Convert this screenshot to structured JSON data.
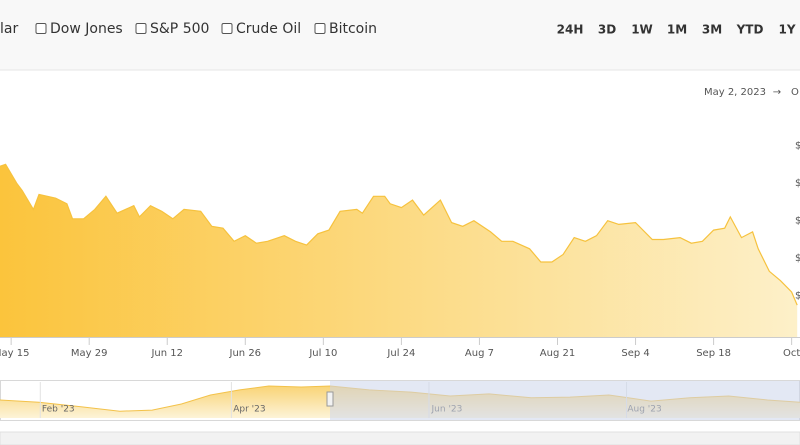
{
  "toolbar": {
    "compare": [
      "lar",
      "Dow Jones",
      "S&P 500",
      "Crude Oil",
      "Bitcoin"
    ],
    "ranges": [
      "24H",
      "3D",
      "1W",
      "1M",
      "3M",
      "YTD",
      "1Y"
    ],
    "active_range": "YTD"
  },
  "date_range": {
    "from": "May 2, 2023",
    "separator": "→",
    "to": "O"
  },
  "chart_data": [
    {
      "type": "area",
      "color": "#f6c23e",
      "x": [
        0,
        1,
        3,
        4,
        6,
        7,
        10,
        12,
        13,
        15,
        17,
        19,
        21,
        24,
        25,
        27,
        29,
        31,
        33,
        36,
        38,
        40,
        42,
        44,
        46,
        48,
        51,
        53,
        55,
        57,
        59,
        61,
        64,
        65,
        67,
        69,
        70,
        72,
        74,
        76,
        79,
        81,
        83,
        85,
        88,
        90,
        92,
        95,
        97,
        99,
        101,
        103,
        105,
        107,
        109,
        111,
        114,
        117,
        119,
        122,
        124,
        126,
        128,
        130,
        131,
        133,
        135,
        136,
        138,
        140,
        142,
        143
      ],
      "values": [
        89,
        90,
        80,
        76,
        66,
        74,
        72,
        69,
        61,
        61,
        66,
        73,
        64,
        68,
        62,
        68,
        65,
        61,
        66,
        65,
        57,
        56,
        49,
        52,
        48,
        49,
        52,
        49,
        47,
        53,
        55,
        65,
        66,
        64,
        73,
        73,
        69,
        67,
        71,
        63,
        71,
        59,
        57,
        60,
        54,
        49,
        49,
        45,
        38,
        38,
        42,
        51,
        49,
        52,
        60,
        58,
        59,
        50,
        50,
        51,
        48,
        49,
        55,
        56,
        62,
        51,
        54,
        45,
        33,
        28,
        22,
        15
      ],
      "xlim": [
        0,
        143.5
      ],
      "xticks": [
        {
          "value": 2,
          "label": "May 15"
        },
        {
          "value": 16,
          "label": "May 29"
        },
        {
          "value": 30,
          "label": "Jun 12"
        },
        {
          "value": 44,
          "label": "Jun 26"
        },
        {
          "value": 58,
          "label": "Jul 10"
        },
        {
          "value": 72,
          "label": "Jul 24"
        },
        {
          "value": 86,
          "label": "Aug 7"
        },
        {
          "value": 100,
          "label": "Aug 21"
        },
        {
          "value": 114,
          "label": "Sep 4"
        },
        {
          "value": 128,
          "label": "Sep 18"
        },
        {
          "value": 142,
          "label": "Oct"
        }
      ],
      "ylim": [
        -2,
        135
      ],
      "yticks": [
        {
          "value": 20,
          "label": "$"
        },
        {
          "value": 40,
          "label": "$"
        },
        {
          "value": 60,
          "label": "$"
        },
        {
          "value": 80,
          "label": "$"
        },
        {
          "value": 100,
          "label": "$"
        }
      ]
    },
    {
      "type": "area",
      "color": "#f3c24a",
      "x": [
        13,
        25,
        38,
        50,
        60,
        69,
        78,
        87,
        96,
        106,
        115,
        127,
        140,
        152,
        164,
        177,
        189,
        201,
        214,
        226,
        238,
        250,
        260
      ],
      "values": [
        50,
        44,
        31,
        19,
        22,
        39,
        64,
        78,
        89,
        86,
        89,
        78,
        72,
        61,
        67,
        56,
        58,
        64,
        47,
        56,
        61,
        50,
        44
      ],
      "xlim": [
        13,
        260
      ],
      "ylim": [
        0,
        100
      ],
      "xticks": [
        {
          "value": 31,
          "label": "Feb '23"
        },
        {
          "value": 90,
          "label": "Apr '23"
        },
        {
          "value": 151,
          "label": "Jun '23"
        },
        {
          "value": 212,
          "label": "Aug '23"
        }
      ]
    }
  ]
}
